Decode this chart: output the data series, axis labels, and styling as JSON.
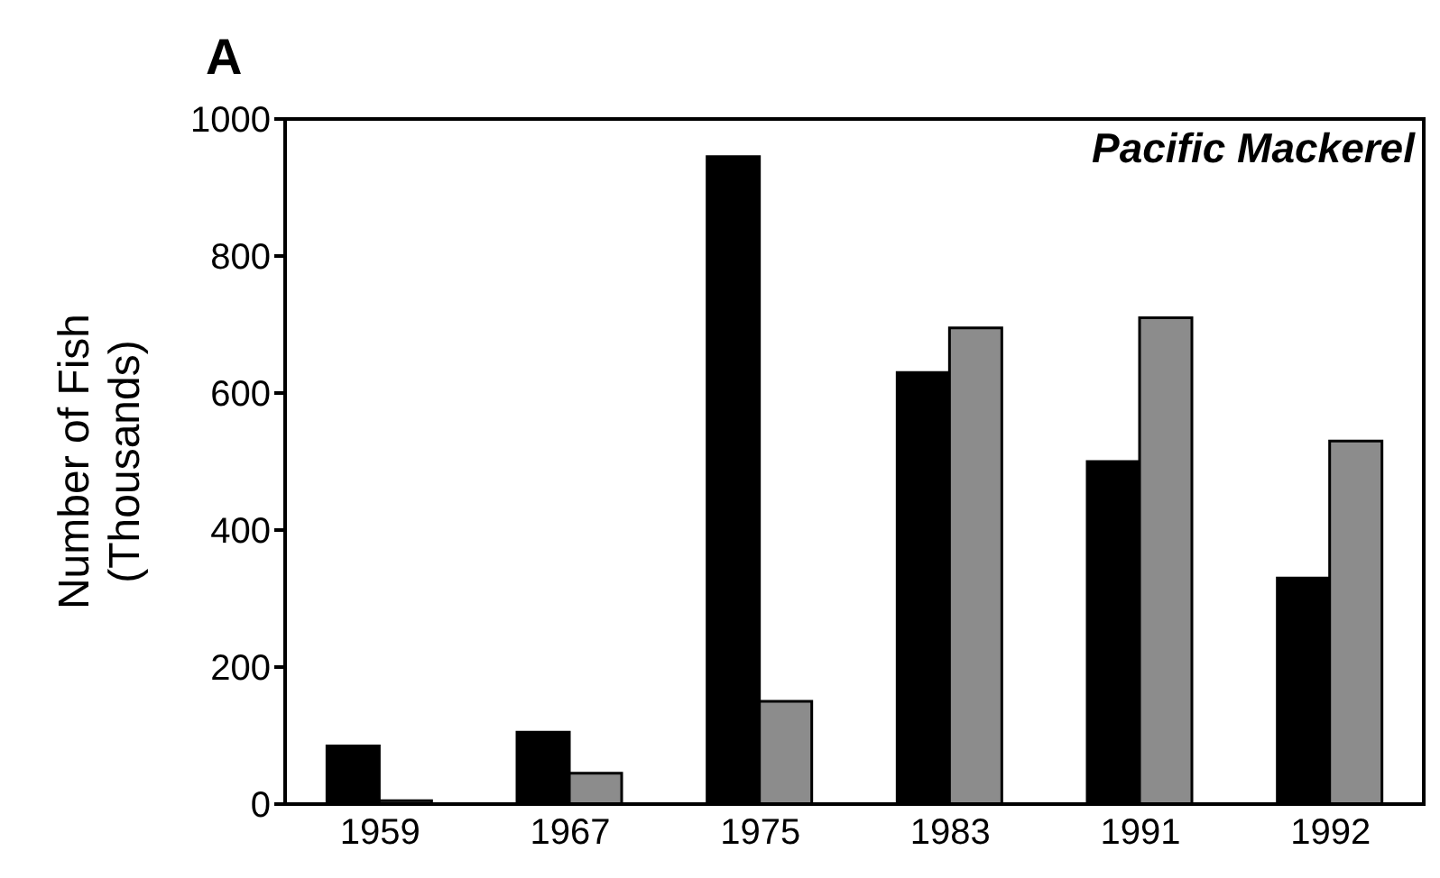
{
  "chart_data": {
    "type": "bar",
    "title": "A",
    "ylabel": "Number of Fish\n(Thousands)",
    "annotations": [
      "Pacific Mackerel"
    ],
    "categories": [
      "1959",
      "1967",
      "1975",
      "1983",
      "1991",
      "1992"
    ],
    "series": [
      {
        "color": "#000000",
        "values": [
          85,
          105,
          945,
          630,
          500,
          330
        ]
      },
      {
        "color": "#8c8c8c",
        "values": [
          5,
          45,
          150,
          695,
          710,
          530
        ]
      }
    ],
    "ylim": [
      0,
      1000
    ],
    "yticks": [
      0,
      200,
      400,
      600,
      800,
      1000
    ],
    "grid": false,
    "legend": false
  }
}
